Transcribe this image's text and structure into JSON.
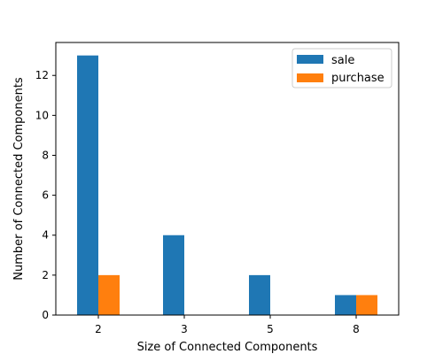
{
  "chart_data": {
    "type": "bar",
    "categories": [
      "2",
      "3",
      "5",
      "8"
    ],
    "series": [
      {
        "name": "sale",
        "values": [
          13,
          4,
          2,
          1
        ]
      },
      {
        "name": "purchase",
        "values": [
          2,
          0,
          0,
          1
        ]
      }
    ],
    "xlabel": "Size of Connected Components",
    "ylabel": "Number of Connected Components",
    "ylim": [
      0,
      13.65
    ],
    "yticks": [
      0,
      2,
      4,
      6,
      8,
      10,
      12
    ],
    "legend_position": "top-right",
    "grid": false
  },
  "colors": {
    "sale": "#1f77b4",
    "purchase": "#ff7f0e",
    "axis": "#000000",
    "background": "#ffffff"
  }
}
